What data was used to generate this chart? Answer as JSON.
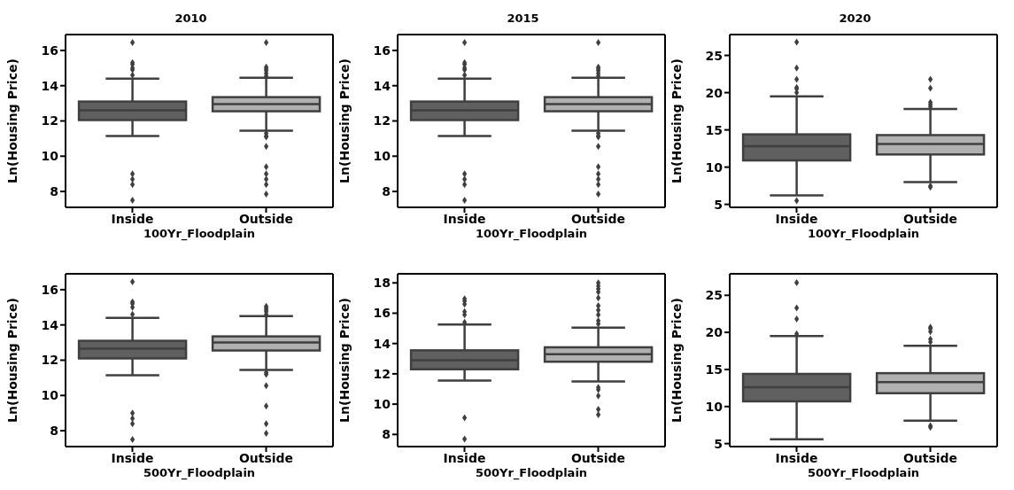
{
  "chart_data": [
    {
      "type": "box",
      "title": "2010",
      "xlabel": "100Yr_Floodplain",
      "ylabel": "Ln(Housing Price)",
      "categories": [
        "Inside",
        "Outside"
      ],
      "colors": [
        "#606060",
        "#b0b0b0"
      ],
      "ylim": [
        7.1,
        16.9
      ],
      "yticks": [
        8,
        10,
        12,
        14,
        16
      ],
      "grid": false,
      "legend": false,
      "boxes": [
        {
          "low": 11.15,
          "q1": 12.05,
          "median": 12.6,
          "q3": 13.1,
          "high": 14.4,
          "outliers": [
            16.45,
            15.3,
            15.2,
            15.0,
            14.9,
            14.6,
            9.0,
            8.7,
            8.4,
            7.5
          ]
        },
        {
          "low": 11.45,
          "q1": 12.55,
          "median": 12.95,
          "q3": 13.35,
          "high": 14.45,
          "outliers": [
            16.45,
            15.05,
            14.95,
            14.85,
            14.7,
            14.55,
            11.3,
            11.15,
            11.1,
            10.55,
            9.4,
            9.0,
            8.7,
            8.4,
            7.85
          ]
        }
      ]
    },
    {
      "type": "box",
      "title": "2015",
      "xlabel": "100Yr_Floodplain",
      "ylabel": "Ln(Housing Price)",
      "categories": [
        "Inside",
        "Outside"
      ],
      "colors": [
        "#606060",
        "#b0b0b0"
      ],
      "ylim": [
        7.1,
        16.9
      ],
      "yticks": [
        8,
        10,
        12,
        14,
        16
      ],
      "grid": false,
      "legend": false,
      "boxes": [
        {
          "low": 11.15,
          "q1": 12.05,
          "median": 12.6,
          "q3": 13.1,
          "high": 14.4,
          "outliers": [
            16.45,
            15.3,
            15.2,
            15.0,
            14.9,
            14.6,
            9.0,
            8.7,
            8.4,
            7.5
          ]
        },
        {
          "low": 11.45,
          "q1": 12.55,
          "median": 12.95,
          "q3": 13.35,
          "high": 14.45,
          "outliers": [
            16.45,
            15.05,
            14.95,
            14.85,
            14.7,
            14.55,
            11.3,
            11.15,
            11.1,
            10.55,
            9.4,
            9.0,
            8.7,
            8.4,
            7.85
          ]
        }
      ]
    },
    {
      "type": "box",
      "title": "2020",
      "xlabel": "100Yr_Floodplain",
      "ylabel": "Ln(Housing Price)",
      "categories": [
        "Inside",
        "Outside"
      ],
      "colors": [
        "#606060",
        "#b0b0b0"
      ],
      "ylim": [
        4.6,
        27.8
      ],
      "yticks": [
        5,
        10,
        15,
        20,
        25
      ],
      "grid": false,
      "legend": false,
      "boxes": [
        {
          "low": 6.2,
          "q1": 10.9,
          "median": 12.8,
          "q3": 14.4,
          "high": 19.5,
          "outliers": [
            26.8,
            23.3,
            21.8,
            20.7,
            20.5,
            20.0,
            5.5
          ]
        },
        {
          "low": 8.0,
          "q1": 11.7,
          "median": 13.1,
          "q3": 14.3,
          "high": 17.8,
          "outliers": [
            21.8,
            20.6,
            18.7,
            18.4,
            18.1,
            7.5,
            7.3
          ]
        }
      ]
    },
    {
      "type": "box",
      "xlabel": "500Yr_Floodplain",
      "ylabel": "Ln(Housing Price)",
      "categories": [
        "Inside",
        "Outside"
      ],
      "colors": [
        "#606060",
        "#b0b0b0"
      ],
      "ylim": [
        7.1,
        16.9
      ],
      "yticks": [
        8,
        10,
        12,
        14,
        16
      ],
      "grid": false,
      "legend": false,
      "boxes": [
        {
          "low": 11.15,
          "q1": 12.1,
          "median": 12.65,
          "q3": 13.1,
          "high": 14.4,
          "outliers": [
            16.45,
            15.3,
            15.2,
            15.0,
            14.6,
            9.0,
            8.7,
            8.4,
            7.5
          ]
        },
        {
          "low": 11.45,
          "q1": 12.55,
          "median": 13.0,
          "q3": 13.35,
          "high": 14.5,
          "outliers": [
            15.05,
            14.95,
            14.85,
            14.75,
            14.6,
            11.3,
            11.2,
            10.55,
            9.4,
            8.4,
            7.85
          ]
        }
      ]
    },
    {
      "type": "box",
      "xlabel": "500Yr_Floodplain",
      "ylabel": "Ln(Housing Price)",
      "categories": [
        "Inside",
        "Outside"
      ],
      "colors": [
        "#606060",
        "#b0b0b0"
      ],
      "ylim": [
        7.2,
        18.6
      ],
      "yticks": [
        8,
        10,
        12,
        14,
        16,
        18
      ],
      "grid": false,
      "legend": false,
      "boxes": [
        {
          "low": 11.55,
          "q1": 12.3,
          "median": 12.9,
          "q3": 13.55,
          "high": 15.25,
          "outliers": [
            16.95,
            16.8,
            16.6,
            16.1,
            15.9,
            15.4,
            9.1,
            7.7
          ]
        },
        {
          "low": 11.5,
          "q1": 12.8,
          "median": 13.3,
          "q3": 13.75,
          "high": 15.05,
          "outliers": [
            18.0,
            17.8,
            17.6,
            17.4,
            17.0,
            16.5,
            16.2,
            15.9,
            15.5,
            15.3,
            11.1,
            10.95,
            10.55,
            9.65,
            9.3
          ]
        }
      ]
    },
    {
      "type": "box",
      "xlabel": "500Yr_Floodplain",
      "ylabel": "Ln(Housing Price)",
      "categories": [
        "Inside",
        "Outside"
      ],
      "colors": [
        "#606060",
        "#b0b0b0"
      ],
      "ylim": [
        4.6,
        27.9
      ],
      "yticks": [
        5,
        10,
        15,
        20,
        25
      ],
      "grid": false,
      "legend": false,
      "boxes": [
        {
          "low": 5.6,
          "q1": 10.7,
          "median": 12.6,
          "q3": 14.4,
          "high": 19.5,
          "outliers": [
            26.7,
            23.3,
            21.8,
            19.8
          ]
        },
        {
          "low": 8.1,
          "q1": 11.8,
          "median": 13.3,
          "q3": 14.5,
          "high": 18.2,
          "outliers": [
            20.7,
            20.5,
            20.1,
            19.1,
            18.7,
            7.4,
            7.2
          ]
        }
      ]
    }
  ]
}
